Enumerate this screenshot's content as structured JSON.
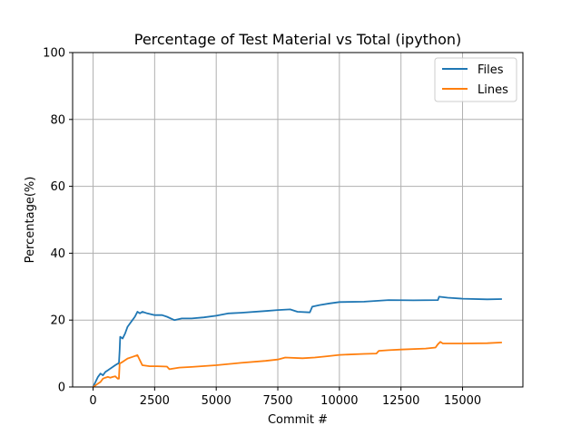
{
  "chart_data": {
    "type": "line",
    "title": "Percentage of Test Material vs Total (ipython)",
    "xlabel": "Commit #",
    "ylabel": "Percentage(%)",
    "xlim": [
      -830,
      17450
    ],
    "ylim": [
      0,
      100
    ],
    "xticks": [
      0,
      2500,
      5000,
      7500,
      10000,
      12500,
      15000
    ],
    "yticks": [
      0,
      20,
      40,
      60,
      80,
      100
    ],
    "xtick_labels": [
      "0",
      "2500",
      "5000",
      "7500",
      "10000",
      "12500",
      "15000"
    ],
    "ytick_labels": [
      "0",
      "20",
      "40",
      "60",
      "80",
      "100"
    ],
    "grid": true,
    "legend_position": "top-right",
    "series": [
      {
        "name": "Files",
        "color": "#1f77b4",
        "points": [
          [
            0,
            0
          ],
          [
            100,
            1.5
          ],
          [
            200,
            3
          ],
          [
            300,
            4
          ],
          [
            400,
            3.5
          ],
          [
            500,
            4.5
          ],
          [
            600,
            5
          ],
          [
            700,
            5.5
          ],
          [
            800,
            6
          ],
          [
            900,
            6.5
          ],
          [
            1000,
            7
          ],
          [
            1050,
            7
          ],
          [
            1080,
            11
          ],
          [
            1100,
            15
          ],
          [
            1200,
            14.5
          ],
          [
            1300,
            16
          ],
          [
            1400,
            18
          ],
          [
            1500,
            19
          ],
          [
            1600,
            20
          ],
          [
            1700,
            21
          ],
          [
            1800,
            22.5
          ],
          [
            1900,
            22
          ],
          [
            2000,
            22.5
          ],
          [
            2200,
            22
          ],
          [
            2500,
            21.5
          ],
          [
            2800,
            21.5
          ],
          [
            3000,
            21
          ],
          [
            3300,
            20
          ],
          [
            3600,
            20.5
          ],
          [
            4000,
            20.5
          ],
          [
            4500,
            20.8
          ],
          [
            5000,
            21.3
          ],
          [
            5500,
            22
          ],
          [
            6000,
            22.2
          ],
          [
            7000,
            22.7
          ],
          [
            7500,
            23
          ],
          [
            8000,
            23.2
          ],
          [
            8300,
            22.5
          ],
          [
            8800,
            22.3
          ],
          [
            8900,
            24
          ],
          [
            9200,
            24.5
          ],
          [
            9600,
            25
          ],
          [
            10000,
            25.4
          ],
          [
            11000,
            25.5
          ],
          [
            12000,
            26
          ],
          [
            13000,
            25.9
          ],
          [
            14000,
            26
          ],
          [
            14050,
            27
          ],
          [
            14400,
            26.7
          ],
          [
            15000,
            26.4
          ],
          [
            16000,
            26.2
          ],
          [
            16600,
            26.3
          ]
        ]
      },
      {
        "name": "Lines",
        "color": "#ff7f0e",
        "points": [
          [
            0,
            0
          ],
          [
            100,
            0.5
          ],
          [
            200,
            1
          ],
          [
            300,
            1.5
          ],
          [
            400,
            2.5
          ],
          [
            500,
            2.8
          ],
          [
            600,
            3
          ],
          [
            700,
            2.8
          ],
          [
            800,
            3
          ],
          [
            900,
            3.2
          ],
          [
            1000,
            2.5
          ],
          [
            1050,
            2.5
          ],
          [
            1080,
            7
          ],
          [
            1200,
            7.5
          ],
          [
            1400,
            8.5
          ],
          [
            1600,
            9
          ],
          [
            1800,
            9.5
          ],
          [
            1900,
            8
          ],
          [
            2000,
            6.5
          ],
          [
            2300,
            6.2
          ],
          [
            2600,
            6.2
          ],
          [
            3000,
            6.1
          ],
          [
            3100,
            5.3
          ],
          [
            3500,
            5.8
          ],
          [
            4000,
            6
          ],
          [
            5000,
            6.5
          ],
          [
            6000,
            7.2
          ],
          [
            7000,
            7.8
          ],
          [
            7500,
            8.2
          ],
          [
            7800,
            8.8
          ],
          [
            8500,
            8.6
          ],
          [
            9000,
            8.8
          ],
          [
            9500,
            9.2
          ],
          [
            10000,
            9.6
          ],
          [
            11000,
            9.9
          ],
          [
            11500,
            10
          ],
          [
            11600,
            10.8
          ],
          [
            12000,
            11
          ],
          [
            12500,
            11.2
          ],
          [
            13500,
            11.5
          ],
          [
            13900,
            11.8
          ],
          [
            14000,
            12.8
          ],
          [
            14100,
            13.5
          ],
          [
            14200,
            13
          ],
          [
            15000,
            13
          ],
          [
            16000,
            13.1
          ],
          [
            16600,
            13.3
          ]
        ]
      }
    ]
  }
}
